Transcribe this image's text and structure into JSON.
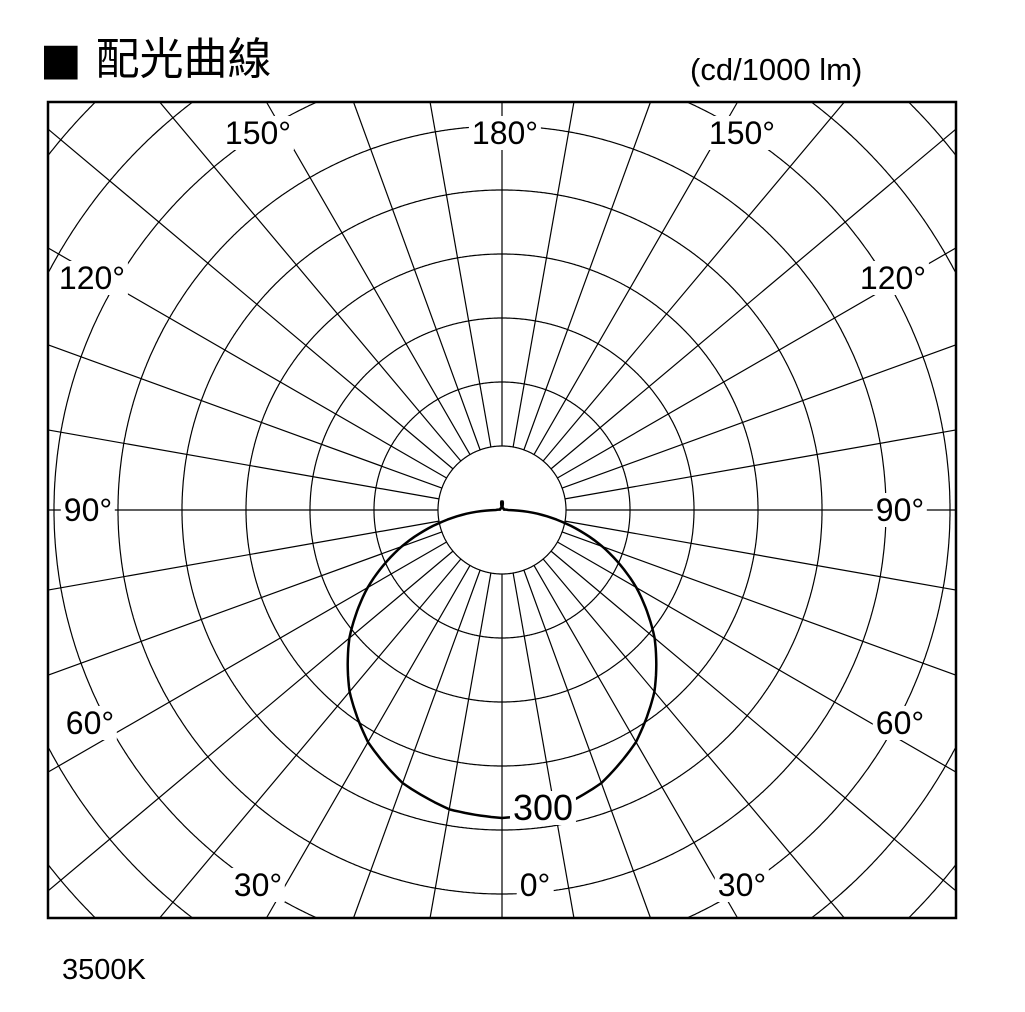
{
  "title": "■ 配光曲線",
  "unit": "(cd/1000 lm)",
  "color_temperature": "3500K",
  "chart_data": {
    "type": "polar",
    "title": "配光曲線",
    "unit": "cd/1000 lm",
    "angle_labels": {
      "top_left_150": "150°",
      "top_180": "180°",
      "top_right_150": "150°",
      "left_120": "120°",
      "right_120": "120°",
      "left_90": "90°",
      "right_90": "90°",
      "left_60": "60°",
      "right_60": "60°",
      "bottom_left_30": "30°",
      "bottom_0": "0°",
      "bottom_right_30": "30°"
    },
    "radial_label": "300",
    "radial_line_step_deg": 10,
    "grid": true,
    "series": [
      {
        "angles_deg": [
          0,
          10,
          20,
          30,
          40,
          50,
          60,
          70,
          80,
          90,
          100,
          120,
          140,
          160,
          170,
          175,
          180
        ],
        "intensity": [
          300,
          296,
          283,
          261,
          231,
          194,
          151,
          104,
          54,
          6,
          2,
          2,
          2,
          2,
          3,
          8,
          9
        ]
      }
    ],
    "colors": {
      "line": "#000000",
      "grid": "#000000",
      "background": "#ffffff"
    }
  }
}
